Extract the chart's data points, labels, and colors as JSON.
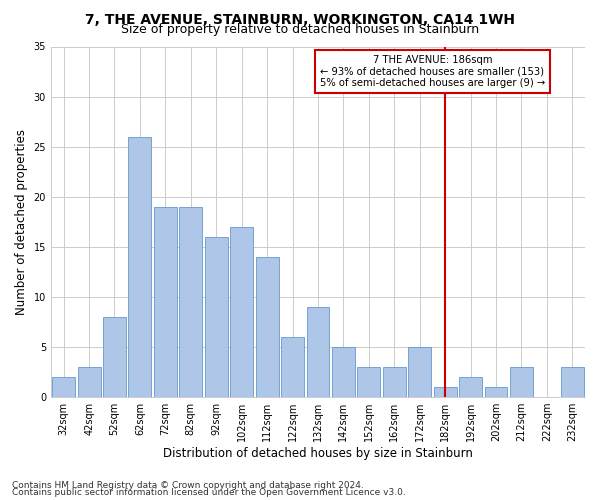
{
  "title": "7, THE AVENUE, STAINBURN, WORKINGTON, CA14 1WH",
  "subtitle": "Size of property relative to detached houses in Stainburn",
  "xlabel": "Distribution of detached houses by size in Stainburn",
  "ylabel": "Number of detached properties",
  "footer1": "Contains HM Land Registry data © Crown copyright and database right 2024.",
  "footer2": "Contains public sector information licensed under the Open Government Licence v3.0.",
  "annotation_title": "7 THE AVENUE: 186sqm",
  "annotation_line1": "← 93% of detached houses are smaller (153)",
  "annotation_line2": "5% of semi-detached houses are larger (9) →",
  "bar_labels": [
    "32sqm",
    "42sqm",
    "52sqm",
    "62sqm",
    "72sqm",
    "82sqm",
    "92sqm",
    "102sqm",
    "112sqm",
    "122sqm",
    "132sqm",
    "142sqm",
    "152sqm",
    "162sqm",
    "172sqm",
    "182sqm",
    "192sqm",
    "202sqm",
    "212sqm",
    "222sqm",
    "232sqm"
  ],
  "bar_values": [
    2,
    3,
    8,
    26,
    19,
    19,
    16,
    17,
    14,
    6,
    9,
    5,
    3,
    3,
    5,
    1,
    2,
    1,
    3,
    0,
    3
  ],
  "bar_color": "#aec6e8",
  "bar_edge_color": "#6699cc",
  "vline_index": 15,
  "vline_color": "#cc0000",
  "annotation_box_color": "#cc0000",
  "grid_color": "#cccccc",
  "ylim": [
    0,
    35
  ],
  "yticks": [
    0,
    5,
    10,
    15,
    20,
    25,
    30,
    35
  ],
  "bg_color": "#ffffff",
  "title_fontsize": 10,
  "subtitle_fontsize": 9,
  "axis_label_fontsize": 8.5,
  "tick_fontsize": 7,
  "footer_fontsize": 6.5
}
